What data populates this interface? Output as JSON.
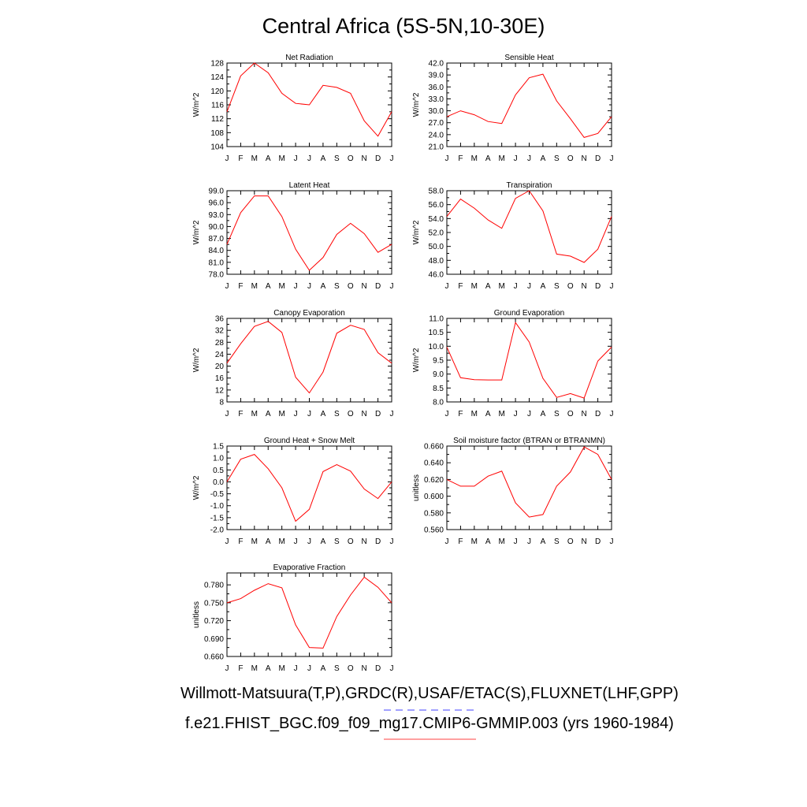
{
  "title": "Central Africa (5S-5N,10-30E)",
  "footer": {
    "line1": "Willmott-Matsuura(T,P),GRDC(R),USAF/ETAC(S),FLUXNET(LHF,GPP)",
    "line2": "f.e21.FHIST_BGC.f09_f09_mg17.CMIP6-GMMIP.003 (yrs 1960-1984)",
    "line1_underline_color": "#4040ff",
    "line2_underline_color": "#ff4040"
  },
  "colors": {
    "series": "#ff0000",
    "frame": "#000000"
  },
  "chart_data": [
    {
      "type": "line",
      "title": "Net Radiation",
      "ylabel": "W/m^2",
      "x": [
        "J",
        "F",
        "M",
        "A",
        "M",
        "J",
        "J",
        "A",
        "S",
        "O",
        "N",
        "D",
        "J"
      ],
      "ylim": [
        104,
        128
      ],
      "yticks": [
        "104",
        "108",
        "112",
        "116",
        "120",
        "124",
        "128"
      ],
      "values": [
        114.0,
        124.3,
        128.0,
        125.2,
        119.3,
        116.4,
        116.0,
        121.6,
        121.0,
        119.3,
        111.4,
        107.0,
        114.0
      ],
      "grid": false
    },
    {
      "type": "line",
      "title": "Sensible Heat",
      "ylabel": "W/m^2",
      "x": [
        "J",
        "F",
        "M",
        "A",
        "M",
        "J",
        "J",
        "A",
        "S",
        "O",
        "N",
        "D",
        "J"
      ],
      "ylim": [
        21.0,
        42.0
      ],
      "yticks": [
        "21.0",
        "24.0",
        "27.0",
        "30.0",
        "33.0",
        "36.0",
        "39.0",
        "42.0"
      ],
      "values": [
        28.5,
        30.0,
        29.0,
        27.3,
        26.8,
        34.0,
        38.3,
        39.2,
        32.5,
        28.0,
        23.3,
        24.3,
        28.5
      ],
      "grid": false
    },
    {
      "type": "line",
      "title": "Latent Heat",
      "ylabel": "W/m^2",
      "x": [
        "J",
        "F",
        "M",
        "A",
        "M",
        "J",
        "J",
        "A",
        "S",
        "O",
        "N",
        "D",
        "J"
      ],
      "ylim": [
        78.0,
        99.0
      ],
      "yticks": [
        "78.0",
        "81.0",
        "84.0",
        "87.0",
        "90.0",
        "93.0",
        "96.0",
        "99.0"
      ],
      "values": [
        85.5,
        93.5,
        97.7,
        97.7,
        92.5,
        84.3,
        79.0,
        82.2,
        88.0,
        90.8,
        88.2,
        83.5,
        85.5
      ],
      "grid": false
    },
    {
      "type": "line",
      "title": "Transpiration",
      "ylabel": "W/m^2",
      "x": [
        "J",
        "F",
        "M",
        "A",
        "M",
        "J",
        "J",
        "A",
        "S",
        "O",
        "N",
        "D",
        "J"
      ],
      "ylim": [
        46.0,
        58.0
      ],
      "yticks": [
        "46.0",
        "48.0",
        "50.0",
        "52.0",
        "54.0",
        "56.0",
        "58.0"
      ],
      "values": [
        54.3,
        56.8,
        55.5,
        53.8,
        52.6,
        56.9,
        58.0,
        55.1,
        48.9,
        48.6,
        47.7,
        49.6,
        54.3
      ],
      "grid": false
    },
    {
      "type": "line",
      "title": "Canopy Evaporation",
      "ylabel": "W/m^2",
      "x": [
        "J",
        "F",
        "M",
        "A",
        "M",
        "J",
        "J",
        "A",
        "S",
        "O",
        "N",
        "D",
        "J"
      ],
      "ylim": [
        8,
        36
      ],
      "yticks": [
        "8",
        "12",
        "16",
        "20",
        "24",
        "28",
        "32",
        "36"
      ],
      "values": [
        21.0,
        27.5,
        33.3,
        35.0,
        31.3,
        16.3,
        11.0,
        18.0,
        31.0,
        33.7,
        32.3,
        24.5,
        21.0
      ],
      "grid": false
    },
    {
      "type": "line",
      "title": "Ground Evaporation",
      "ylabel": "W/m^2",
      "x": [
        "J",
        "F",
        "M",
        "A",
        "M",
        "J",
        "J",
        "A",
        "S",
        "O",
        "N",
        "D",
        "J"
      ],
      "ylim": [
        8.0,
        11.0
      ],
      "yticks": [
        "8.0",
        "8.5",
        "9.0",
        "9.5",
        "10.0",
        "10.5",
        "11.0"
      ],
      "values": [
        9.97,
        8.87,
        8.8,
        8.79,
        8.79,
        10.85,
        10.15,
        8.85,
        8.16,
        8.3,
        8.14,
        9.47,
        9.97
      ],
      "grid": false
    },
    {
      "type": "line",
      "title": "Ground Heat + Snow Melt",
      "ylabel": "W/m^2",
      "x": [
        "J",
        "F",
        "M",
        "A",
        "M",
        "J",
        "J",
        "A",
        "S",
        "O",
        "N",
        "D",
        "J"
      ],
      "ylim": [
        -2.0,
        1.5
      ],
      "yticks": [
        "-2.0",
        "-1.5",
        "-1.0",
        "-0.5",
        "0.0",
        "0.5",
        "1.0",
        "1.5"
      ],
      "values": [
        0.0,
        0.95,
        1.15,
        0.55,
        -0.25,
        -1.65,
        -1.15,
        0.43,
        0.72,
        0.45,
        -0.3,
        -0.7,
        0.0
      ],
      "grid": false
    },
    {
      "type": "line",
      "title": "Soil moisture factor (BTRAN or BTRANMN)",
      "ylabel": "unitless",
      "x": [
        "J",
        "F",
        "M",
        "A",
        "M",
        "J",
        "J",
        "A",
        "S",
        "O",
        "N",
        "D",
        "J"
      ],
      "ylim": [
        0.56,
        0.66
      ],
      "yticks": [
        "0.560",
        "0.580",
        "0.600",
        "0.620",
        "0.640",
        "0.660"
      ],
      "values": [
        0.62,
        0.612,
        0.612,
        0.624,
        0.63,
        0.592,
        0.575,
        0.578,
        0.612,
        0.629,
        0.659,
        0.65,
        0.62
      ],
      "grid": false
    },
    {
      "type": "line",
      "title": "Evaporative Fraction",
      "ylabel": "unitless",
      "x": [
        "J",
        "F",
        "M",
        "A",
        "M",
        "J",
        "J",
        "A",
        "S",
        "O",
        "N",
        "D",
        "J"
      ],
      "ylim": [
        0.66,
        0.8
      ],
      "yticks": [
        "0.660",
        "0.690",
        "0.720",
        "0.750",
        "0.780"
      ],
      "values": [
        0.75,
        0.757,
        0.771,
        0.782,
        0.775,
        0.713,
        0.675,
        0.674,
        0.727,
        0.763,
        0.793,
        0.776,
        0.75
      ],
      "grid": false
    }
  ]
}
